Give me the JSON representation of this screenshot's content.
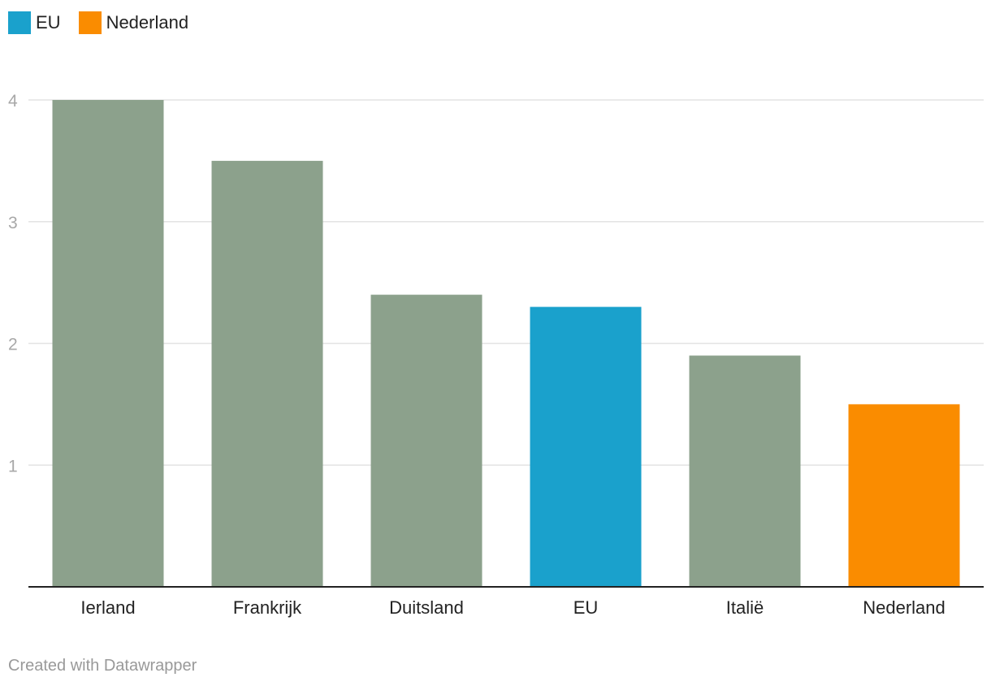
{
  "legend": [
    {
      "label": "EU",
      "color": "#1aa1cc"
    },
    {
      "label": "Nederland",
      "color": "#fa8c00"
    }
  ],
  "footer": {
    "text": "Created with Datawrapper"
  },
  "chart_data": {
    "type": "bar",
    "categories": [
      "Ierland",
      "Frankrijk",
      "Duitsland",
      "EU",
      "Italië",
      "Nederland"
    ],
    "values": [
      4.0,
      3.5,
      2.4,
      2.3,
      1.9,
      1.5
    ],
    "colors": [
      "#8ca18c",
      "#8ca18c",
      "#8ca18c",
      "#1aa1cc",
      "#8ca18c",
      "#fa8c00"
    ],
    "yticks": [
      1,
      2,
      3,
      4
    ],
    "ylim": [
      0,
      4
    ],
    "grid": true,
    "legend_position": "top-left",
    "title": "",
    "xlabel": "",
    "ylabel": ""
  }
}
